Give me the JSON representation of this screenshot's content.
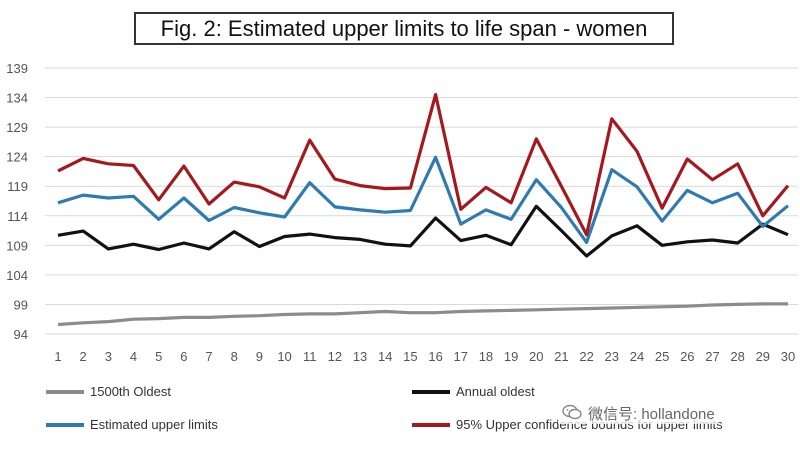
{
  "chart_data": {
    "type": "line",
    "title": "Fig. 2: Estimated upper limits to life span - women",
    "xlabel": "",
    "ylabel": "",
    "x": [
      1,
      2,
      3,
      4,
      5,
      6,
      7,
      8,
      9,
      10,
      11,
      12,
      13,
      14,
      15,
      16,
      17,
      18,
      19,
      20,
      21,
      22,
      23,
      24,
      25,
      26,
      27,
      28,
      29,
      30
    ],
    "yticks": [
      94,
      99,
      104,
      109,
      114,
      119,
      124,
      129,
      134,
      139
    ],
    "ylim": [
      94,
      139
    ],
    "grid": true,
    "legend_position": "bottom",
    "series": [
      {
        "name": "1500th Oldest",
        "color": "#8c8c8c",
        "values": [
          95.6,
          95.9,
          96.1,
          96.5,
          96.6,
          96.8,
          96.8,
          97.0,
          97.1,
          97.3,
          97.4,
          97.4,
          97.6,
          97.8,
          97.6,
          97.6,
          97.8,
          97.9,
          98.0,
          98.1,
          98.2,
          98.3,
          98.4,
          98.5,
          98.6,
          98.7,
          98.9,
          99.0,
          99.1,
          99.1
        ]
      },
      {
        "name": "Annual oldest",
        "color": "#111111",
        "values": [
          110.7,
          111.4,
          108.4,
          109.2,
          108.3,
          109.4,
          108.4,
          111.3,
          108.8,
          110.5,
          110.9,
          110.3,
          110.0,
          109.2,
          108.9,
          113.6,
          109.8,
          110.7,
          109.1,
          115.6,
          111.5,
          107.2,
          110.6,
          112.3,
          109.0,
          109.6,
          109.9,
          109.4,
          112.6,
          110.8
        ]
      },
      {
        "name": "Estimated upper limits",
        "color": "#2f7bb1",
        "values": [
          116.2,
          117.5,
          117.0,
          117.3,
          113.4,
          117.0,
          113.2,
          115.4,
          114.5,
          113.8,
          119.6,
          115.5,
          115.0,
          114.6,
          114.9,
          123.9,
          112.6,
          115.0,
          113.4,
          120.1,
          115.4,
          109.5,
          121.8,
          118.9,
          113.1,
          118.3,
          116.2,
          117.8,
          112.2,
          115.7
        ]
      },
      {
        "name": "95% Upper confidence bounds for upper limits",
        "color": "#a3191d",
        "values": [
          121.6,
          123.7,
          122.8,
          122.5,
          116.7,
          122.4,
          116.0,
          119.7,
          118.9,
          117.0,
          126.8,
          120.2,
          119.1,
          118.6,
          118.7,
          134.5,
          115.1,
          118.8,
          116.2,
          127.0,
          119.0,
          110.8,
          130.4,
          124.9,
          115.3,
          123.6,
          120.1,
          122.8,
          114.0,
          119.1
        ]
      }
    ]
  },
  "legend": {
    "items": [
      {
        "label": "1500th Oldest",
        "color": "#8c8c8c"
      },
      {
        "label": "Annual oldest",
        "color": "#111111"
      },
      {
        "label": "Estimated upper limits",
        "color": "#2f7bb1"
      },
      {
        "label": "95% Upper confidence bounds for upper limits",
        "color": "#a3191d"
      }
    ]
  },
  "watermark": {
    "text": "微信号: hollandone",
    "icon": "wechat-icon"
  }
}
